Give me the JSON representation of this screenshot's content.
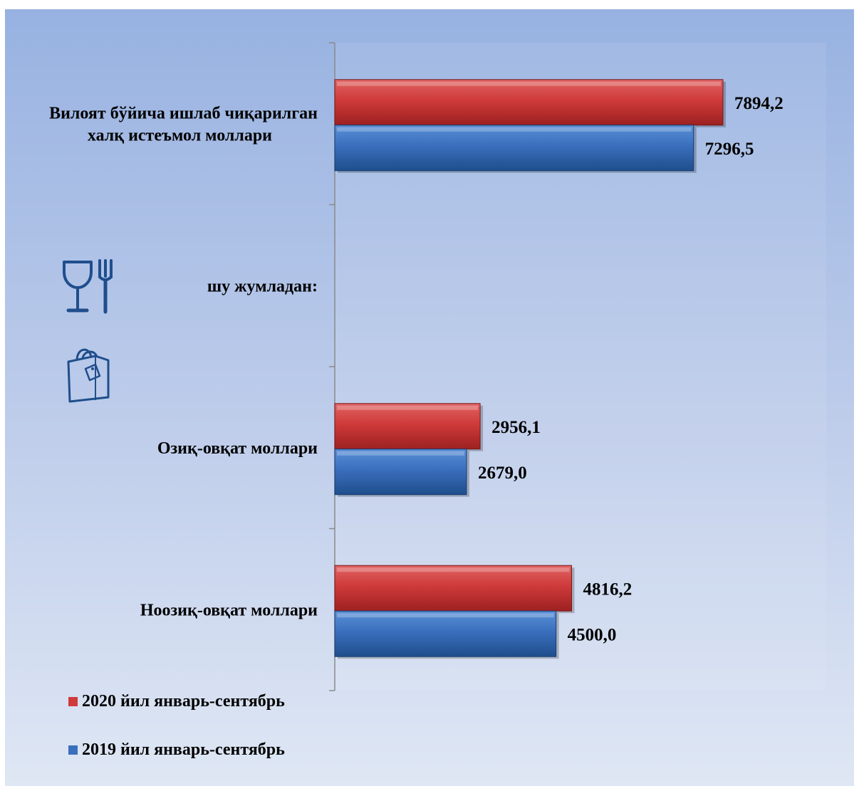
{
  "chart_data": {
    "type": "bar",
    "orientation": "horizontal",
    "categories": [
      [
        "Вилоят бўйича ишлаб чиқарилган",
        "халқ истеъмол моллари"
      ],
      [
        "шу жумладан:"
      ],
      [
        "Озиқ-овқат моллари"
      ],
      [
        "Ноозиқ-овқат моллари"
      ]
    ],
    "series": [
      {
        "name": "2020 йил январь-сентябрь",
        "color": "#cf3a3a",
        "values": [
          7894.2,
          null,
          2956.1,
          4816.2
        ],
        "labels": [
          "7894,2",
          "",
          "2956,1",
          "4816,2"
        ]
      },
      {
        "name": "2019 йил январь-сентябрь",
        "color": "#3a6fbe",
        "values": [
          7296.5,
          null,
          2679.0,
          4500.0
        ],
        "labels": [
          "7296,5",
          "",
          "2679,0",
          "4500,0"
        ]
      }
    ],
    "xlim": [
      0,
      10000
    ],
    "grid": false,
    "legend_position": "bottom-left"
  },
  "legend": {
    "items": [
      {
        "label": "2020 йил январь-сентябрь",
        "color": "#cf3a3a"
      },
      {
        "label": "2019 йил январь-сентябрь",
        "color": "#3a6fbe"
      }
    ]
  },
  "icons": [
    "food-icon",
    "shopping-bag-icon"
  ],
  "colors": {
    "background_top": "#97b2e1",
    "background_bottom": "#dfe7f4",
    "icon": "#1f4e8c"
  }
}
